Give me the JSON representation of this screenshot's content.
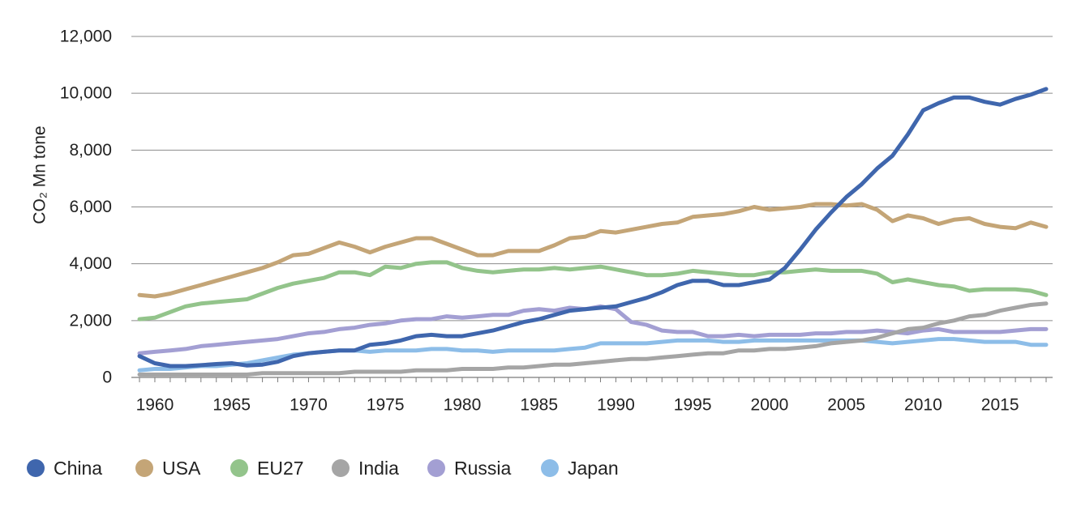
{
  "chart_data": {
    "type": "line",
    "title": "",
    "xlabel": "",
    "ylabel": "CO₂ Mn tone",
    "xlim": [
      1959,
      2018
    ],
    "ylim": [
      0,
      12000
    ],
    "yticks": [
      0,
      2000,
      4000,
      6000,
      8000,
      10000,
      12000
    ],
    "ytick_labels": [
      "0",
      "2,000",
      "4,000",
      "6,000",
      "8,000",
      "10,000",
      "12,000"
    ],
    "xticks": [
      1960,
      1965,
      1970,
      1975,
      1980,
      1985,
      1990,
      1995,
      2000,
      2005,
      2010,
      2015
    ],
    "xtick_labels": [
      "1960",
      "1965",
      "1970",
      "1975",
      "1980",
      "1985",
      "1990",
      "1995",
      "2000",
      "2005",
      "2010",
      "2015"
    ],
    "grid": "horizontal",
    "legend_position": "bottom-left",
    "x": [
      1959,
      1960,
      1961,
      1962,
      1963,
      1964,
      1965,
      1966,
      1967,
      1968,
      1969,
      1970,
      1971,
      1972,
      1973,
      1974,
      1975,
      1976,
      1977,
      1978,
      1979,
      1980,
      1981,
      1982,
      1983,
      1984,
      1985,
      1986,
      1987,
      1988,
      1989,
      1990,
      1991,
      1992,
      1993,
      1994,
      1995,
      1996,
      1997,
      1998,
      1999,
      2000,
      2001,
      2002,
      2003,
      2004,
      2005,
      2006,
      2007,
      2008,
      2009,
      2010,
      2011,
      2012,
      2013,
      2014,
      2015,
      2016,
      2017,
      2018
    ],
    "series": [
      {
        "name": "China",
        "color": "#3f66ad",
        "values": [
          750,
          500,
          400,
          400,
          430,
          470,
          500,
          420,
          450,
          550,
          750,
          850,
          900,
          950,
          950,
          1150,
          1200,
          1300,
          1450,
          1500,
          1450,
          1450,
          1550,
          1650,
          1800,
          1950,
          2050,
          2200,
          2350,
          2400,
          2450,
          2500,
          2650,
          2800,
          3000,
          3250,
          3400,
          3400,
          3250,
          3250,
          3350,
          3450,
          3850,
          4500,
          5200,
          5800,
          6350,
          6800,
          7350,
          7800,
          8550,
          9400,
          9650,
          9850,
          9850,
          9700,
          9600,
          9800,
          9950,
          10150
        ]
      },
      {
        "name": "USA",
        "color": "#c4a577",
        "values": [
          2900,
          2850,
          2950,
          3100,
          3250,
          3400,
          3550,
          3700,
          3850,
          4050,
          4300,
          4350,
          4550,
          4750,
          4600,
          4400,
          4600,
          4750,
          4900,
          4900,
          4700,
          4500,
          4300,
          4300,
          4450,
          4450,
          4450,
          4650,
          4900,
          4950,
          5150,
          5100,
          5200,
          5300,
          5400,
          5450,
          5650,
          5700,
          5750,
          5850,
          6000,
          5900,
          5950,
          6000,
          6100,
          6100,
          6050,
          6100,
          5900,
          5500,
          5700,
          5600,
          5400,
          5550,
          5600,
          5400,
          5300,
          5250,
          5450,
          5300
        ]
      },
      {
        "name": "EU27",
        "color": "#93c48b",
        "values": [
          2050,
          2100,
          2300,
          2500,
          2600,
          2650,
          2700,
          2750,
          2950,
          3150,
          3300,
          3400,
          3500,
          3700,
          3700,
          3600,
          3900,
          3850,
          4000,
          4050,
          4050,
          3850,
          3750,
          3700,
          3750,
          3800,
          3800,
          3850,
          3800,
          3850,
          3900,
          3800,
          3700,
          3600,
          3600,
          3650,
          3750,
          3700,
          3650,
          3600,
          3600,
          3700,
          3700,
          3750,
          3800,
          3750,
          3750,
          3750,
          3650,
          3350,
          3450,
          3350,
          3250,
          3200,
          3050,
          3100,
          3100,
          3100,
          3050,
          2900
        ]
      },
      {
        "name": "India",
        "color": "#a5a5a5",
        "values": [
          100,
          100,
          100,
          100,
          100,
          100,
          100,
          100,
          150,
          150,
          150,
          150,
          150,
          150,
          200,
          200,
          200,
          200,
          250,
          250,
          250,
          300,
          300,
          300,
          350,
          350,
          400,
          450,
          450,
          500,
          550,
          600,
          650,
          650,
          700,
          750,
          800,
          850,
          850,
          950,
          950,
          1000,
          1000,
          1050,
          1100,
          1200,
          1250,
          1300,
          1400,
          1550,
          1700,
          1750,
          1900,
          2000,
          2150,
          2200,
          2350,
          2450,
          2550,
          2600
        ]
      },
      {
        "name": "Russia",
        "color": "#a39fd3",
        "values": [
          850,
          900,
          950,
          1000,
          1100,
          1150,
          1200,
          1250,
          1300,
          1350,
          1450,
          1550,
          1600,
          1700,
          1750,
          1850,
          1900,
          2000,
          2050,
          2050,
          2150,
          2100,
          2150,
          2200,
          2200,
          2350,
          2400,
          2350,
          2450,
          2400,
          2500,
          2400,
          1950,
          1850,
          1650,
          1600,
          1600,
          1450,
          1450,
          1500,
          1450,
          1500,
          1500,
          1500,
          1550,
          1550,
          1600,
          1600,
          1650,
          1600,
          1550,
          1650,
          1700,
          1600,
          1600,
          1600,
          1600,
          1650,
          1700,
          1700
        ]
      },
      {
        "name": "Japan",
        "color": "#8dbde8",
        "values": [
          250,
          300,
          300,
          350,
          400,
          400,
          450,
          500,
          600,
          700,
          800,
          850,
          900,
          950,
          950,
          900,
          950,
          950,
          950,
          1000,
          1000,
          950,
          950,
          900,
          950,
          950,
          950,
          950,
          1000,
          1050,
          1200,
          1200,
          1200,
          1200,
          1250,
          1300,
          1300,
          1300,
          1250,
          1250,
          1300,
          1300,
          1300,
          1300,
          1300,
          1300,
          1300,
          1300,
          1250,
          1200,
          1250,
          1300,
          1350,
          1350,
          1300,
          1250,
          1250,
          1250,
          1150,
          1150
        ]
      }
    ]
  }
}
